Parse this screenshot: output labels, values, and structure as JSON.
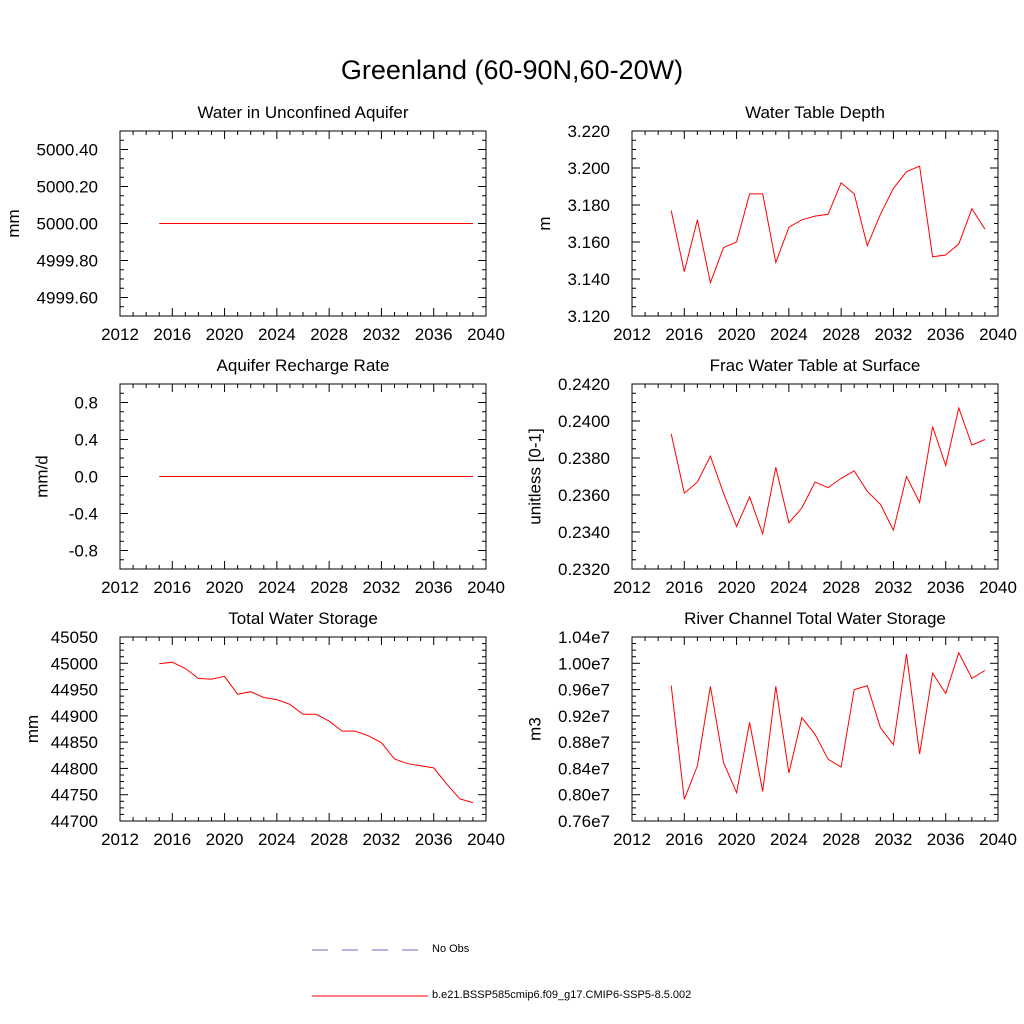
{
  "title": "Greenland (60-90N,60-20W)",
  "colors": {
    "model": "#ff0000",
    "obs": "#6a6acd",
    "axis": "#000000"
  },
  "legend": {
    "obs_label": "No Obs",
    "model_label": "b.e21.BSSP585cmip6.f09_g17.CMIP6-SSP5-8.5.002"
  },
  "chart_data": [
    {
      "type": "line",
      "title": "Water in Unconfined Aquifer",
      "ylabel": "mm",
      "xlim": [
        2012,
        2040
      ],
      "ylim": [
        4999.5,
        5000.5
      ],
      "xticks": [
        2012,
        2016,
        2020,
        2024,
        2028,
        2032,
        2036,
        2040
      ],
      "yticks": [
        4999.6,
        4999.8,
        5000.0,
        5000.2,
        5000.4
      ],
      "ytick_labels": [
        "4999.60",
        "4999.80",
        "5000.00",
        "5000.20",
        "5000.40"
      ],
      "x": [
        2015,
        2016,
        2017,
        2018,
        2019,
        2020,
        2021,
        2022,
        2023,
        2024,
        2025,
        2026,
        2027,
        2028,
        2029,
        2030,
        2031,
        2032,
        2033,
        2034,
        2035,
        2036,
        2037,
        2038,
        2039
      ],
      "series": [
        {
          "name": "b.e21.BSSP585cmip6.f09_g17.CMIP6-SSP5-8.5.002",
          "values": [
            5000,
            5000,
            5000,
            5000,
            5000,
            5000,
            5000,
            5000,
            5000,
            5000,
            5000,
            5000,
            5000,
            5000,
            5000,
            5000,
            5000,
            5000,
            5000,
            5000,
            5000,
            5000,
            5000,
            5000,
            5000
          ]
        }
      ]
    },
    {
      "type": "line",
      "title": "Water Table Depth",
      "ylabel": "m",
      "xlim": [
        2012,
        2040
      ],
      "ylim": [
        3.12,
        3.22
      ],
      "xticks": [
        2012,
        2016,
        2020,
        2024,
        2028,
        2032,
        2036,
        2040
      ],
      "yticks": [
        3.12,
        3.14,
        3.16,
        3.18,
        3.2,
        3.22
      ],
      "ytick_labels": [
        "3.120",
        "3.140",
        "3.160",
        "3.180",
        "3.200",
        "3.220"
      ],
      "x": [
        2015,
        2016,
        2017,
        2018,
        2019,
        2020,
        2021,
        2022,
        2023,
        2024,
        2025,
        2026,
        2027,
        2028,
        2029,
        2030,
        2031,
        2032,
        2033,
        2034,
        2035,
        2036,
        2037,
        2038,
        2039
      ],
      "series": [
        {
          "name": "b.e21.BSSP585cmip6.f09_g17.CMIP6-SSP5-8.5.002",
          "values": [
            3.177,
            3.144,
            3.172,
            3.138,
            3.157,
            3.16,
            3.186,
            3.186,
            3.149,
            3.168,
            3.172,
            3.174,
            3.175,
            3.192,
            3.186,
            3.158,
            3.175,
            3.189,
            3.198,
            3.201,
            3.152,
            3.153,
            3.159,
            3.178,
            3.167
          ]
        }
      ]
    },
    {
      "type": "line",
      "title": "Aquifer Recharge Rate",
      "ylabel": "mm/d",
      "xlim": [
        2012,
        2040
      ],
      "ylim": [
        -1.0,
        1.0
      ],
      "xticks": [
        2012,
        2016,
        2020,
        2024,
        2028,
        2032,
        2036,
        2040
      ],
      "yticks": [
        -0.8,
        -0.4,
        0.0,
        0.4,
        0.8
      ],
      "ytick_labels": [
        "-0.8",
        "-0.4",
        "0.0",
        "0.4",
        "0.8"
      ],
      "x": [
        2015,
        2016,
        2017,
        2018,
        2019,
        2020,
        2021,
        2022,
        2023,
        2024,
        2025,
        2026,
        2027,
        2028,
        2029,
        2030,
        2031,
        2032,
        2033,
        2034,
        2035,
        2036,
        2037,
        2038,
        2039
      ],
      "series": [
        {
          "name": "b.e21.BSSP585cmip6.f09_g17.CMIP6-SSP5-8.5.002",
          "values": [
            0,
            0,
            0,
            0,
            0,
            0,
            0,
            0,
            0,
            0,
            0,
            0,
            0,
            0,
            0,
            0,
            0,
            0,
            0,
            0,
            0,
            0,
            0,
            0,
            0
          ]
        }
      ]
    },
    {
      "type": "line",
      "title": "Frac Water Table at Surface",
      "ylabel": "unitless [0-1]",
      "xlim": [
        2012,
        2040
      ],
      "ylim": [
        0.232,
        0.242
      ],
      "xticks": [
        2012,
        2016,
        2020,
        2024,
        2028,
        2032,
        2036,
        2040
      ],
      "yticks": [
        0.232,
        0.234,
        0.236,
        0.238,
        0.24,
        0.242
      ],
      "ytick_labels": [
        "0.2320",
        "0.2340",
        "0.2360",
        "0.2380",
        "0.2400",
        "0.2420"
      ],
      "x": [
        2015,
        2016,
        2017,
        2018,
        2019,
        2020,
        2021,
        2022,
        2023,
        2024,
        2025,
        2026,
        2027,
        2028,
        2029,
        2030,
        2031,
        2032,
        2033,
        2034,
        2035,
        2036,
        2037,
        2038,
        2039
      ],
      "series": [
        {
          "name": "b.e21.BSSP585cmip6.f09_g17.CMIP6-SSP5-8.5.002",
          "values": [
            0.2393,
            0.2361,
            0.2367,
            0.2381,
            0.2361,
            0.2343,
            0.2359,
            0.2339,
            0.2375,
            0.2345,
            0.2353,
            0.2367,
            0.2364,
            0.2369,
            0.2373,
            0.2362,
            0.2355,
            0.2341,
            0.237,
            0.2356,
            0.2397,
            0.2376,
            0.2407,
            0.2387,
            0.239
          ]
        }
      ]
    },
    {
      "type": "line",
      "title": "Total Water Storage",
      "ylabel": "mm",
      "xlim": [
        2012,
        2040
      ],
      "ylim": [
        44700,
        45050
      ],
      "xticks": [
        2012,
        2016,
        2020,
        2024,
        2028,
        2032,
        2036,
        2040
      ],
      "yticks": [
        44700,
        44750,
        44800,
        44850,
        44900,
        44950,
        45000,
        45050
      ],
      "ytick_labels": [
        "44700",
        "44750",
        "44800",
        "44850",
        "44900",
        "44950",
        "45000",
        "45050"
      ],
      "x": [
        2015,
        2016,
        2017,
        2018,
        2019,
        2020,
        2021,
        2022,
        2023,
        2024,
        2025,
        2026,
        2027,
        2028,
        2029,
        2030,
        2031,
        2032,
        2033,
        2034,
        2035,
        2036,
        2037,
        2038,
        2039
      ],
      "series": [
        {
          "name": "b.e21.BSSP585cmip6.f09_g17.CMIP6-SSP5-8.5.002",
          "values": [
            44999,
            45002,
            44990,
            44971,
            44970,
            44975,
            44941,
            44946,
            44935,
            44931,
            44922,
            44903,
            44903,
            44890,
            44871,
            44871,
            44862,
            44849,
            44818,
            44809,
            44805,
            44801,
            44770,
            44742,
            44735
          ]
        }
      ]
    },
    {
      "type": "line",
      "title": "River Channel Total Water Storage",
      "ylabel": "m3",
      "xlim": [
        2012,
        2040
      ],
      "ylim": [
        7600000,
        10400000
      ],
      "xticks": [
        2012,
        2016,
        2020,
        2024,
        2028,
        2032,
        2036,
        2040
      ],
      "yticks": [
        7600000,
        8000000,
        8400000,
        8800000,
        9200000,
        9600000,
        10000000,
        10400000
      ],
      "ytick_labels": [
        "0.76e7",
        "0.80e7",
        "0.84e7",
        "0.88e7",
        "0.92e7",
        "0.96e7",
        "1.00e7",
        "1.04e7"
      ],
      "x": [
        2015,
        2016,
        2017,
        2018,
        2019,
        2020,
        2021,
        2022,
        2023,
        2024,
        2025,
        2026,
        2027,
        2028,
        2029,
        2030,
        2031,
        2032,
        2033,
        2034,
        2035,
        2036,
        2037,
        2038,
        2039
      ],
      "series": [
        {
          "name": "b.e21.BSSP585cmip6.f09_g17.CMIP6-SSP5-8.5.002",
          "values": [
            9660000,
            7930000,
            8440000,
            9650000,
            8490000,
            8030000,
            9100000,
            8050000,
            9650000,
            8330000,
            9170000,
            8920000,
            8540000,
            8420000,
            9600000,
            9660000,
            9020000,
            8760000,
            10140000,
            8620000,
            9850000,
            9540000,
            10160000,
            9770000,
            9890000
          ]
        }
      ]
    }
  ]
}
